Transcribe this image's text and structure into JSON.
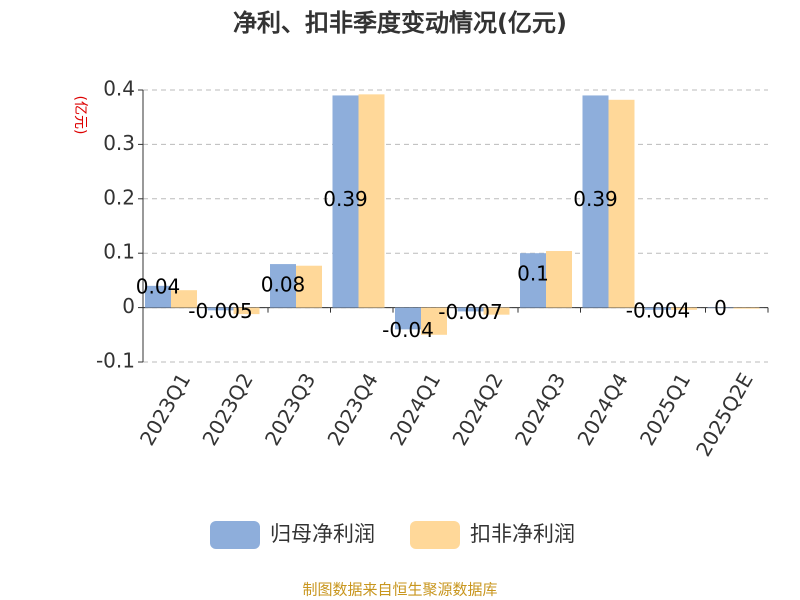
{
  "chart_data": {
    "type": "bar",
    "title": "净利、扣非季度变动情况(亿元)",
    "y_axis_label": "(亿元)",
    "categories": [
      "2023Q1",
      "2023Q2",
      "2023Q3",
      "2023Q4",
      "2024Q1",
      "2024Q2",
      "2024Q3",
      "2024Q4",
      "2025Q1",
      "2025Q2E"
    ],
    "series": [
      {
        "name": "归母净利润",
        "color": "#8eaedb",
        "values": [
          0.04,
          -0.005,
          0.08,
          0.39,
          -0.04,
          -0.007,
          0.1,
          0.39,
          -0.004,
          0
        ]
      },
      {
        "name": "扣非净利润",
        "color": "#ffd899",
        "values": [
          0.032,
          -0.012,
          0.077,
          0.392,
          -0.05,
          -0.013,
          0.104,
          0.382,
          -0.004,
          -0.002
        ]
      }
    ],
    "ylim": [
      -0.1,
      0.4
    ],
    "yticks": [
      -0.1,
      0,
      0.1,
      0.2,
      0.3,
      0.4
    ],
    "grid": true,
    "source": "制图数据来自恒生聚源数据库"
  }
}
